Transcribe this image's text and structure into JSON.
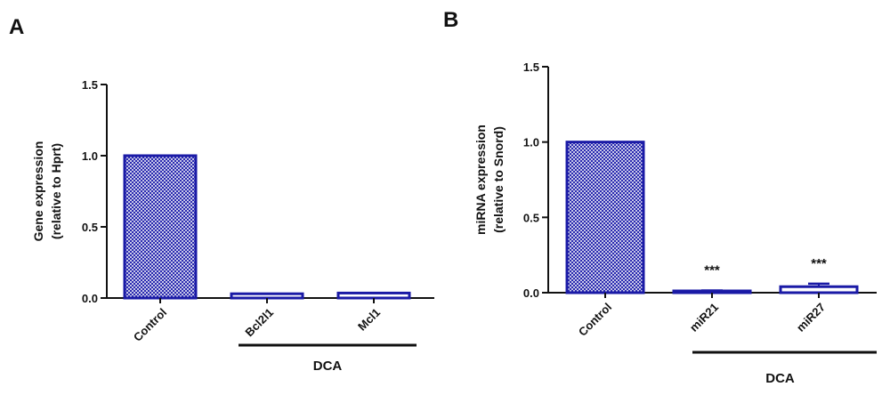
{
  "chart_data": [
    {
      "panel": "A",
      "type": "bar",
      "categories": [
        "Control",
        "Bcl2l1",
        "Mcl1"
      ],
      "values": [
        1.0,
        0.03,
        0.035
      ],
      "errors": [
        0,
        0,
        0
      ],
      "significance": [
        "",
        "",
        ""
      ],
      "ylabel_line1": "Gene expression",
      "ylabel_line2": "(relative to Hprt)",
      "ylim": [
        0,
        1.5
      ],
      "yticks": [
        0.0,
        0.5,
        1.0,
        1.5
      ],
      "ytick_labels": [
        "0.0",
        "0.5",
        "1.0",
        "1.5"
      ],
      "group_label": "DCA",
      "filled": [
        true,
        false,
        false
      ],
      "colors": {
        "bar_stroke": "#1a1aa6",
        "fill_hatch": "#2a2ab0"
      }
    },
    {
      "panel": "B",
      "type": "bar",
      "categories": [
        "Control",
        "miR21",
        "miR27"
      ],
      "values": [
        1.0,
        0.01,
        0.04
      ],
      "errors": [
        0,
        0.005,
        0.02
      ],
      "significance": [
        "",
        "***",
        "***"
      ],
      "ylabel_line1": "miRNA expression",
      "ylabel_line2": "(relative to Snord)",
      "ylim": [
        0,
        1.5
      ],
      "yticks": [
        0.0,
        0.5,
        1.0,
        1.5
      ],
      "ytick_labels": [
        "0.0",
        "0.5",
        "1.0",
        "1.5"
      ],
      "group_label": "DCA",
      "filled": [
        true,
        false,
        false
      ],
      "colors": {
        "bar_stroke": "#1a1aa6",
        "fill_hatch": "#2a2ab0"
      }
    }
  ]
}
